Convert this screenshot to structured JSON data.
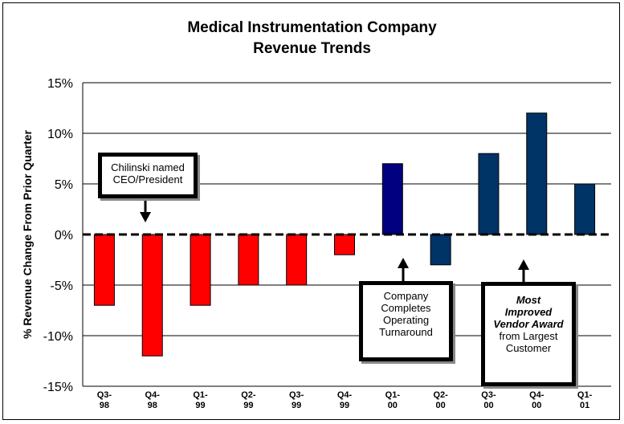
{
  "chart_data": {
    "type": "bar",
    "title": "Medical Instrumentation Company",
    "subtitle": "Revenue Trends",
    "ylabel": "% Revenue Change From Prior Quarter",
    "xlabel": "",
    "ylim": [
      -15,
      15
    ],
    "yticks": [
      "15%",
      "10%",
      "5%",
      "0%",
      "-5%",
      "-10%",
      "-15%"
    ],
    "ytick_values": [
      15,
      10,
      5,
      0,
      -5,
      -10,
      -15
    ],
    "grid": true,
    "categories": [
      [
        "Q3-",
        "98"
      ],
      [
        "Q4-",
        "98"
      ],
      [
        "Q1-",
        "99"
      ],
      [
        "Q2-",
        "99"
      ],
      [
        "Q3-",
        "99"
      ],
      [
        "Q4-",
        "99"
      ],
      [
        "Q1-",
        "00"
      ],
      [
        "Q2-",
        "00"
      ],
      [
        "Q3-",
        "00"
      ],
      [
        "Q4-",
        "00"
      ],
      [
        "Q1-",
        "01"
      ]
    ],
    "values": [
      -7,
      -12,
      -7,
      -5,
      -5,
      -2,
      7,
      -3,
      8,
      12,
      5
    ],
    "bar_colors": [
      "#ff0000",
      "#ff0000",
      "#ff0000",
      "#ff0000",
      "#ff0000",
      "#ff0000",
      "#000080",
      "#003366",
      "#003366",
      "#003366",
      "#003366"
    ]
  },
  "annotations": {
    "callout1": [
      "Chilinski named",
      "CEO/President"
    ],
    "callout2": [
      "Company",
      "Completes",
      "Operating",
      "Turnaround"
    ],
    "callout3_bold": [
      "Most",
      "Improved",
      "Vendor Award"
    ],
    "callout3_plain": [
      "from Largest",
      "Customer"
    ]
  }
}
